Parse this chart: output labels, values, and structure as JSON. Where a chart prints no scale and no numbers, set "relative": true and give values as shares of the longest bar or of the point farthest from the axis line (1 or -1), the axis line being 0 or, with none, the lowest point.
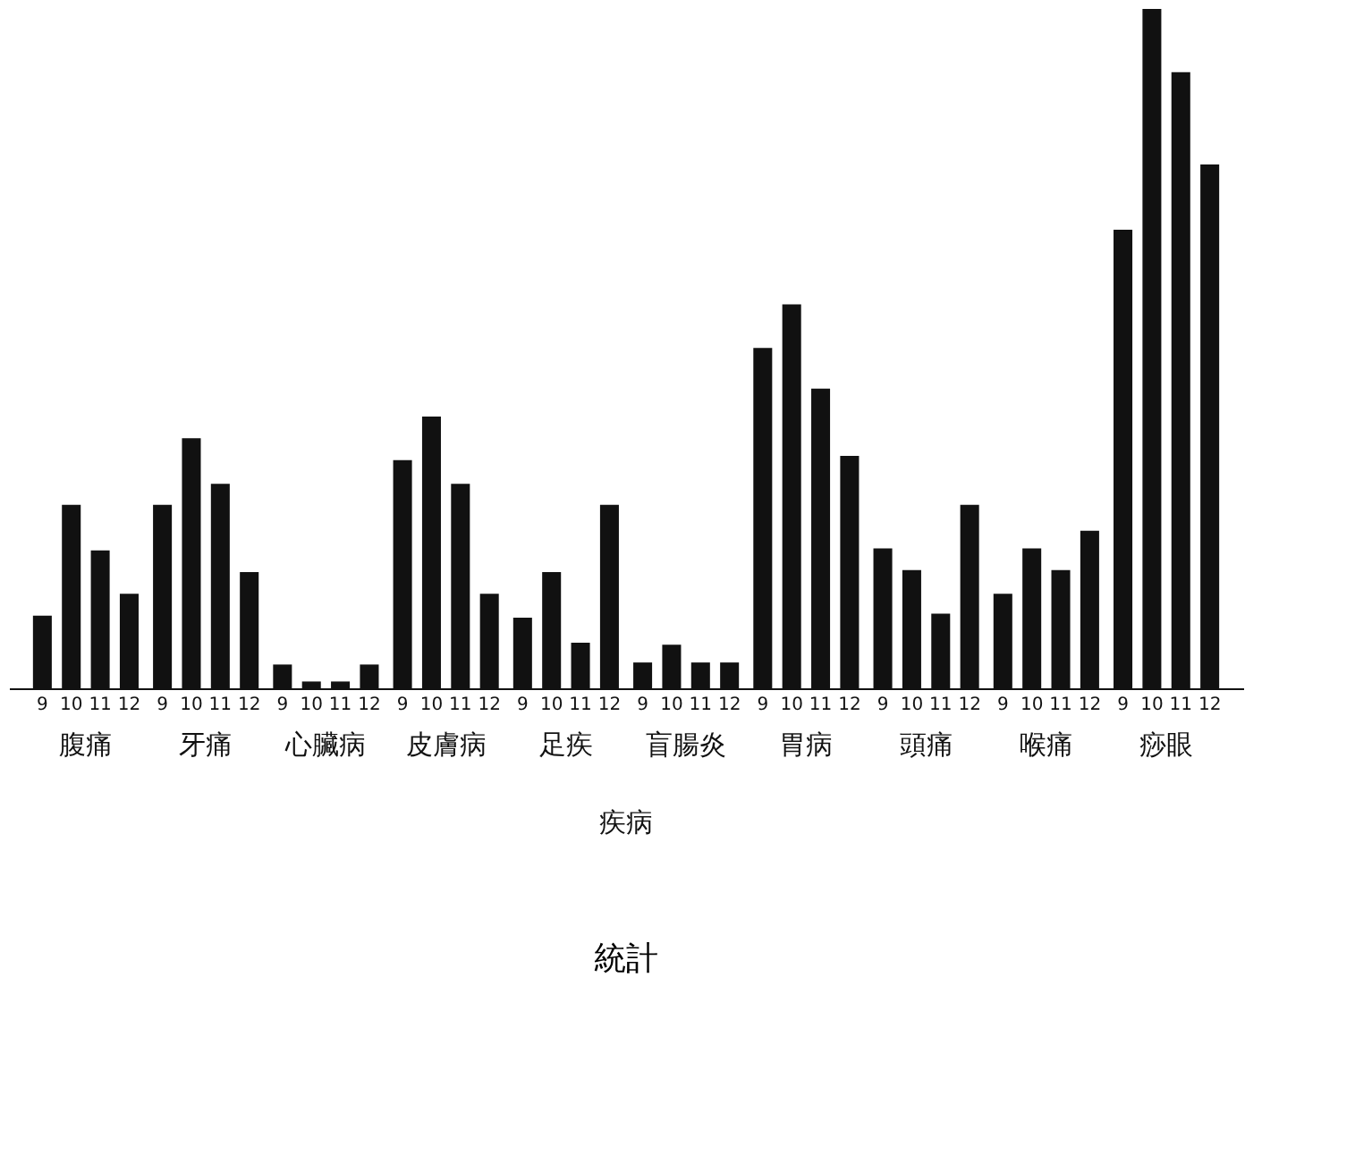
{
  "chart_data": {
    "type": "bar",
    "title": "統計",
    "annotations": [
      "疾病"
    ],
    "relative": true,
    "grid": false,
    "categories": [
      "腹痛",
      "牙痛",
      "心臟病",
      "皮膚病",
      "足疾",
      "盲腸炎",
      "胃病",
      "頭痛",
      "喉痛",
      "痧眼"
    ],
    "series": [
      {
        "name": "9",
        "color": "#111111",
        "values": [
          0.107,
          0.27,
          0.035,
          0.336,
          0.104,
          0.038,
          0.501,
          0.206,
          0.139,
          0.675
        ]
      },
      {
        "name": "10",
        "color": "#111111",
        "values": [
          0.27,
          0.368,
          0.01,
          0.4,
          0.171,
          0.064,
          0.565,
          0.174,
          0.206,
          1
        ]
      },
      {
        "name": "11",
        "color": "#111111",
        "values": [
          0.203,
          0.301,
          0.01,
          0.301,
          0.067,
          0.038,
          0.441,
          0.11,
          0.174,
          0.907
        ]
      },
      {
        "name": "12",
        "color": "#111111",
        "values": [
          0.139,
          0.171,
          0.035,
          0.139,
          0.27,
          0.038,
          0.342,
          0.27,
          0.232,
          0.771
        ]
      }
    ]
  }
}
